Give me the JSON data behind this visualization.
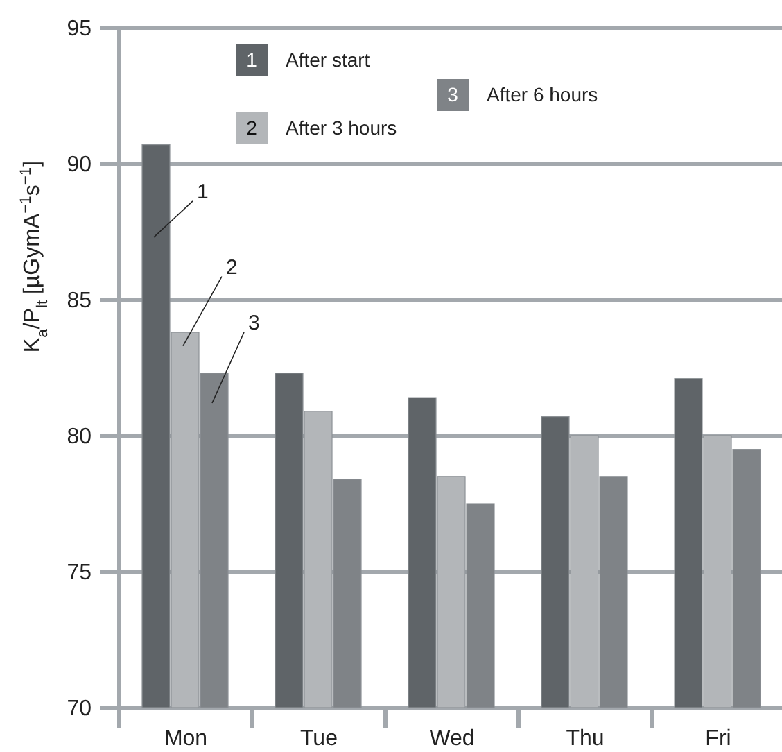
{
  "chart_data": {
    "type": "bar",
    "ylabel": "K$_{a}$/P$_{lt}$ [µGymA$^{−1}$s$^{−1}$]",
    "categories": [
      "Mon",
      "Tue",
      "Wed",
      "Thu",
      "Fri"
    ],
    "series": [
      {
        "name": "After start",
        "color": "#5f6468",
        "values": [
          90.7,
          82.3,
          81.4,
          80.7,
          82.1
        ]
      },
      {
        "name": "After 3 hours",
        "color": "#b3b6b9",
        "values": [
          83.8,
          80.9,
          78.5,
          80,
          80
        ]
      },
      {
        "name": "After 6 hours",
        "color": "#7f8387",
        "values": [
          82.3,
          78.4,
          77.5,
          78.5,
          79.5
        ]
      }
    ],
    "ylim": [
      70,
      95
    ],
    "yticks": [
      70,
      75,
      80,
      85,
      90,
      95
    ],
    "grid": "y",
    "legend": "top left",
    "annotations": [
      "1",
      "2",
      "3"
    ]
  }
}
